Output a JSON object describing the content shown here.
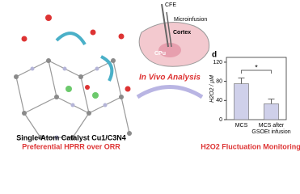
{
  "labels": {
    "cfe": "CFE",
    "microinfusion": "Microinfusion",
    "cortex": "Cortex",
    "cpu": "CPu",
    "analysis": "In Vivo Analysis",
    "catalyst": "Single-Atom Catalyst Cu1/C3N4",
    "preferential": "Preferential HPRR over ORR",
    "monitoring": "H2O2 Fluctuation Monitoring"
  },
  "chart_data": {
    "type": "bar",
    "panel": "d",
    "y_label": "H2O2 / μM",
    "categories": [
      "MCS",
      "MCS after GSOEt infusion"
    ],
    "values": [
      75,
      33
    ],
    "errors": [
      12,
      10
    ],
    "color": "#cfd0ea",
    "ylim": [
      0,
      130
    ],
    "yticks": [
      0,
      40,
      80,
      120
    ],
    "significance": "*"
  }
}
